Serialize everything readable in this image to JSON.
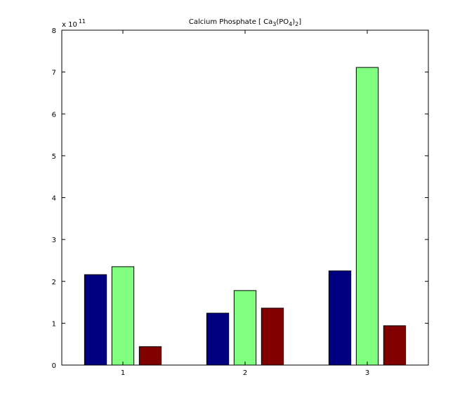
{
  "chart_data": {
    "type": "bar",
    "title": [
      "Calcium Phosphate [  Ca",
      "3",
      "(PO",
      "4",
      ")",
      "2",
      "]"
    ],
    "exponent_label": [
      "x 10",
      "11"
    ],
    "x": [
      1,
      2,
      3
    ],
    "xlim": [
      0.5,
      3.5
    ],
    "xticks": [
      1,
      2,
      3
    ],
    "ylim": [
      0,
      8
    ],
    "yticks": [
      0,
      1,
      2,
      3,
      4,
      5,
      6,
      7,
      8
    ],
    "series": [
      {
        "color": "#000080",
        "values": [
          2.16,
          1.24,
          2.25
        ]
      },
      {
        "color": "#80ff80",
        "values": [
          2.35,
          1.78,
          7.11
        ]
      },
      {
        "color": "#800000",
        "values": [
          0.44,
          1.36,
          0.94
        ]
      }
    ]
  }
}
